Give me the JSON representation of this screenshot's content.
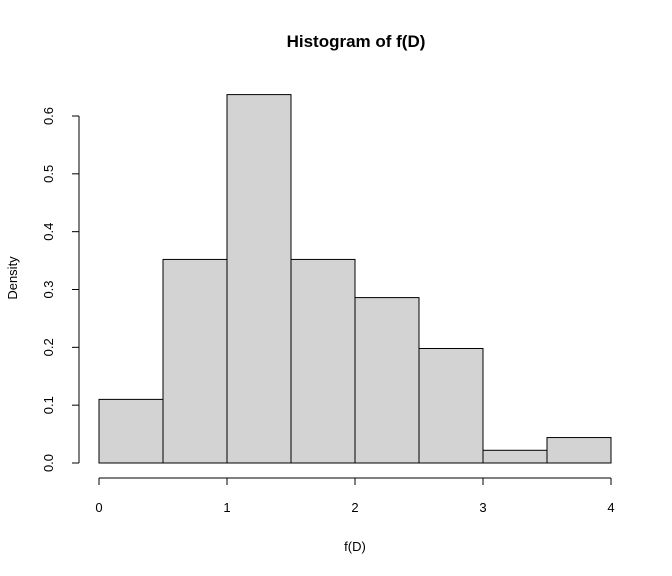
{
  "chart_data": {
    "type": "bar",
    "title": "Histogram of f(D)",
    "xlabel": "f(D)",
    "ylabel": "Density",
    "bins": [
      {
        "x0": 0.0,
        "x1": 0.5,
        "value": 0.11
      },
      {
        "x0": 0.5,
        "x1": 1.0,
        "value": 0.352
      },
      {
        "x0": 1.0,
        "x1": 1.5,
        "value": 0.637
      },
      {
        "x0": 1.5,
        "x1": 2.0,
        "value": 0.352
      },
      {
        "x0": 2.0,
        "x1": 2.5,
        "value": 0.286
      },
      {
        "x0": 2.5,
        "x1": 3.0,
        "value": 0.198
      },
      {
        "x0": 3.0,
        "x1": 3.5,
        "value": 0.022
      },
      {
        "x0": 3.5,
        "x1": 4.0,
        "value": 0.044
      }
    ],
    "xticks": [
      {
        "value": 0,
        "label": "0"
      },
      {
        "value": 1,
        "label": "1"
      },
      {
        "value": 2,
        "label": "2"
      },
      {
        "value": 3,
        "label": "3"
      },
      {
        "value": 4,
        "label": "4"
      }
    ],
    "yticks": [
      {
        "value": 0.0,
        "label": "0.0"
      },
      {
        "value": 0.1,
        "label": "0.1"
      },
      {
        "value": 0.2,
        "label": "0.2"
      },
      {
        "value": 0.3,
        "label": "0.3"
      },
      {
        "value": 0.4,
        "label": "0.4"
      },
      {
        "value": 0.5,
        "label": "0.5"
      },
      {
        "value": 0.6,
        "label": "0.6"
      }
    ],
    "xlim": [
      0,
      4
    ],
    "ylim": [
      0,
      0.6
    ],
    "grid": false,
    "bar_fill": "#d3d3d3",
    "bar_stroke": "#000000"
  }
}
